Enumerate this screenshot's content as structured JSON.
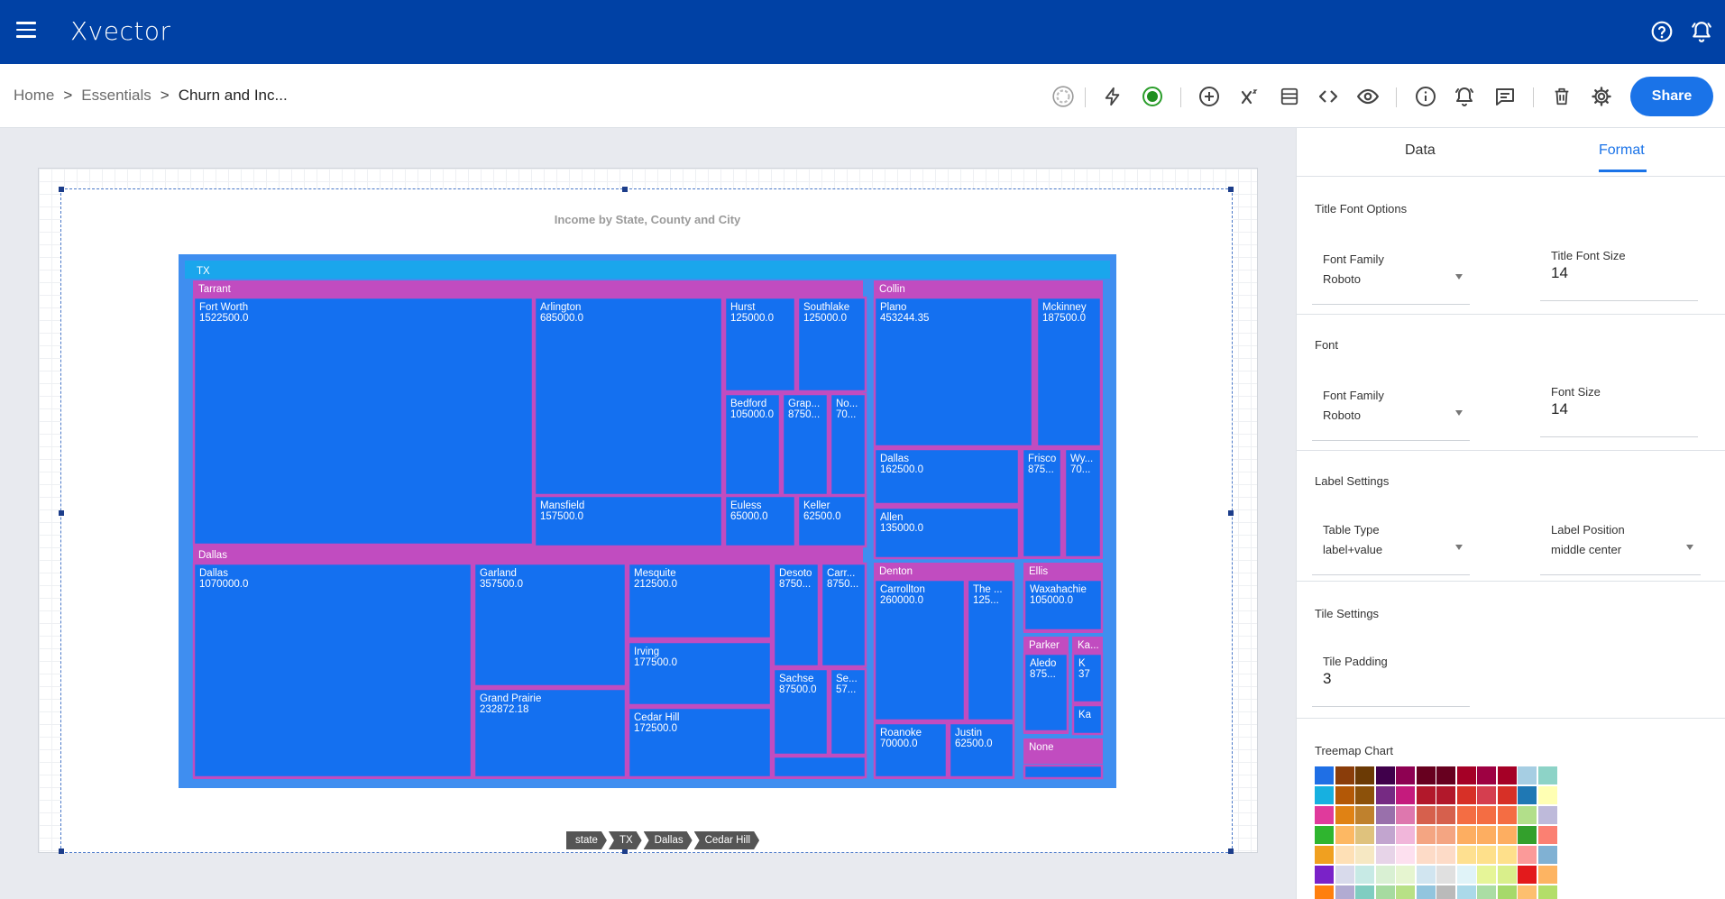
{
  "app": {
    "logo": "Xvector"
  },
  "breadcrumb": {
    "home": "Home",
    "section": "Essentials",
    "current": "Churn and Inc...",
    "separator": ">"
  },
  "toolbar": {
    "share_label": "Share"
  },
  "panel": {
    "tabs": {
      "data": "Data",
      "format": "Format"
    },
    "title_font": {
      "heading": "Title Font Options",
      "family_label": "Font Family",
      "family_value": "Roboto",
      "size_label": "Title Font Size",
      "size_value": "14"
    },
    "font": {
      "heading": "Font",
      "family_label": "Font Family",
      "family_value": "Roboto",
      "size_label": "Font Size",
      "size_value": "14"
    },
    "label_settings": {
      "heading": "Label Settings",
      "type_label": "Table Type",
      "type_value": "label+value",
      "position_label": "Label Position",
      "position_value": "middle center"
    },
    "tile_settings": {
      "heading": "Tile Settings",
      "padding_label": "Tile Padding",
      "padding_value": "3"
    },
    "treemap_chart": {
      "heading": "Treemap Chart"
    }
  },
  "palette_colors": [
    [
      "#1f6fe5",
      "#17b0e0",
      "#e03a9c",
      "#2fb52f",
      "#f0a020",
      "#7a22c8",
      "#ff7f0e"
    ],
    [
      "#8a3d0a",
      "#b35806",
      "#e08214",
      "#fdb863",
      "#fee0b6",
      "#d8daeb",
      "#b2abd2"
    ],
    [
      "#6b3a05",
      "#8c510a",
      "#bf812d",
      "#dfc27d",
      "#f6e8c3",
      "#c7eae5",
      "#80cdc1"
    ],
    [
      "#40004b",
      "#762a83",
      "#9970ab",
      "#c2a5cf",
      "#e7d4e8",
      "#d9f0d3",
      "#a6dba0"
    ],
    [
      "#8e0152",
      "#c51b7d",
      "#de77ae",
      "#f1b6da",
      "#fde0ef",
      "#e6f5d0",
      "#b8e186"
    ],
    [
      "#67001f",
      "#b2182b",
      "#d6604d",
      "#f4a582",
      "#fddbc7",
      "#d1e5f0",
      "#92c5de"
    ],
    [
      "#67001f",
      "#b2182b",
      "#d6604d",
      "#f4a582",
      "#fddbc7",
      "#e0e0e0",
      "#bababa"
    ],
    [
      "#a50026",
      "#d73027",
      "#f46d43",
      "#fdae61",
      "#fee090",
      "#e0f3f8",
      "#abd9e9"
    ],
    [
      "#9e0142",
      "#d53e4f",
      "#f46d43",
      "#fdae61",
      "#fee08b",
      "#e6f598",
      "#abdda4"
    ],
    [
      "#a50026",
      "#d73027",
      "#f46d43",
      "#fdae61",
      "#fee08b",
      "#d9ef8b",
      "#a6d96a"
    ],
    [
      "#a6cee3",
      "#1f78b4",
      "#b2df8a",
      "#33a02c",
      "#fb9a99",
      "#e31a1c",
      "#fdbf6f"
    ],
    [
      "#8dd3c7",
      "#ffffb3",
      "#bebada",
      "#fb8072",
      "#80b1d3",
      "#fdb462",
      "#b3de69"
    ]
  ],
  "chart_data": {
    "type": "treemap",
    "title": "Income by State, County and City",
    "path": [
      "state",
      "TX",
      "Dallas",
      "Cedar Hill"
    ],
    "root": "TX",
    "counties": [
      {
        "name": "Tarrant",
        "cities": [
          {
            "name": "Fort Worth",
            "value": "1522500.0"
          },
          {
            "name": "Arlington",
            "value": "685000.0"
          },
          {
            "name": "Hurst",
            "value": "125000.0"
          },
          {
            "name": "Southlake",
            "value": "125000.0"
          },
          {
            "name": "Bedford",
            "value": "105000.0"
          },
          {
            "name": "Grap...",
            "value": "8750..."
          },
          {
            "name": "No...",
            "value": "70..."
          },
          {
            "name": "Mansfield",
            "value": "157500.0"
          },
          {
            "name": "Euless",
            "value": "65000.0"
          },
          {
            "name": "Keller",
            "value": "62500.0"
          }
        ]
      },
      {
        "name": "Collin",
        "cities": [
          {
            "name": "Plano",
            "value": "453244.35"
          },
          {
            "name": "Mckinney",
            "value": "187500.0"
          },
          {
            "name": "Dallas",
            "value": "162500.0"
          },
          {
            "name": "Frisco",
            "value": "875..."
          },
          {
            "name": "Wy...",
            "value": "70..."
          },
          {
            "name": "Allen",
            "value": "135000.0"
          }
        ]
      },
      {
        "name": "Dallas",
        "cities": [
          {
            "name": "Dallas",
            "value": "1070000.0"
          },
          {
            "name": "Garland",
            "value": "357500.0"
          },
          {
            "name": "Grand Prairie",
            "value": "232872.18"
          },
          {
            "name": "Mesquite",
            "value": "212500.0"
          },
          {
            "name": "Irving",
            "value": "177500.0"
          },
          {
            "name": "Cedar Hill",
            "value": "172500.0"
          },
          {
            "name": "Desoto",
            "value": "8750..."
          },
          {
            "name": "Carr...",
            "value": "8750..."
          },
          {
            "name": "Sachse",
            "value": "87500.0"
          },
          {
            "name": "Se...",
            "value": "57..."
          }
        ]
      },
      {
        "name": "Denton",
        "cities": [
          {
            "name": "Carrollton",
            "value": "260000.0"
          },
          {
            "name": "The ...",
            "value": "125..."
          },
          {
            "name": "Roanoke",
            "value": "70000.0"
          },
          {
            "name": "Justin",
            "value": "62500.0"
          }
        ]
      },
      {
        "name": "Ellis",
        "cities": [
          {
            "name": "Waxahachie",
            "value": "105000.0"
          }
        ]
      },
      {
        "name": "Parker",
        "cities": [
          {
            "name": "Aledo",
            "value": "875..."
          }
        ]
      },
      {
        "name": "Ka...",
        "cities": [
          {
            "name": "K",
            "value": "37"
          },
          {
            "name": "Ka",
            "value": ""
          }
        ]
      },
      {
        "name": "None",
        "cities": []
      }
    ]
  }
}
